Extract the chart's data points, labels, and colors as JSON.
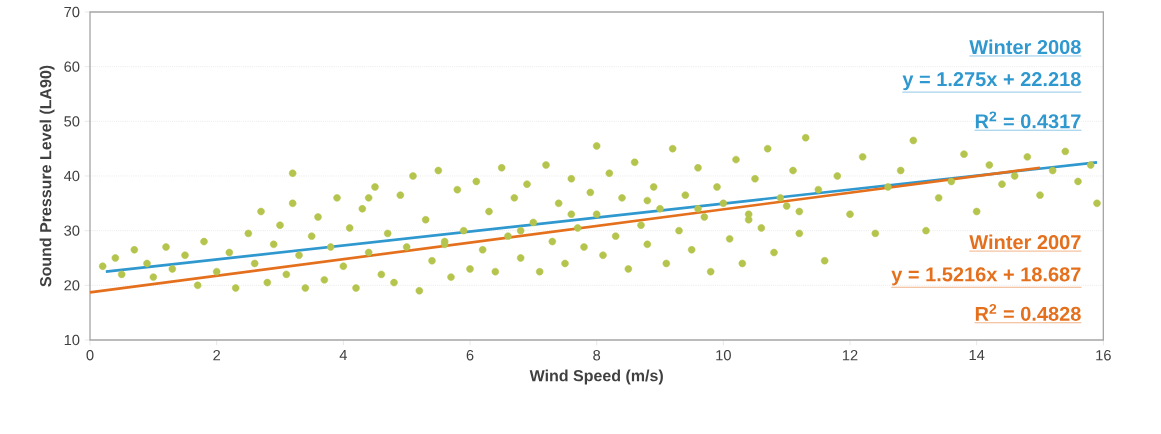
{
  "chart_data": {
    "type": "scatter",
    "xlabel": "Wind Speed (m/s)",
    "ylabel": "Sound Pressure Level (LA90)",
    "xlim": [
      0,
      16
    ],
    "ylim": [
      10,
      70
    ],
    "xticks": [
      0,
      2,
      4,
      6,
      8,
      10,
      12,
      14,
      16
    ],
    "yticks": [
      10,
      20,
      30,
      40,
      50,
      60,
      70
    ],
    "grid": "y",
    "series": [
      {
        "color": "#b5c44c",
        "marker": "circle",
        "x": [
          0.2,
          0.4,
          0.5,
          0.7,
          0.9,
          1.0,
          1.2,
          1.3,
          1.5,
          1.7,
          1.8,
          2.0,
          2.2,
          2.3,
          2.5,
          2.6,
          2.7,
          2.8,
          2.9,
          3.0,
          3.1,
          3.2,
          3.3,
          3.4,
          3.5,
          3.6,
          3.7,
          3.8,
          3.9,
          4.0,
          4.1,
          4.2,
          4.3,
          4.4,
          4.5,
          4.6,
          4.7,
          4.8,
          4.9,
          5.0,
          5.1,
          5.2,
          5.3,
          5.4,
          5.5,
          5.6,
          5.7,
          5.8,
          5.9,
          6.0,
          6.1,
          6.2,
          6.3,
          6.4,
          6.5,
          6.6,
          6.7,
          6.8,
          6.9,
          7.0,
          7.1,
          7.2,
          7.3,
          7.4,
          7.5,
          7.6,
          7.7,
          7.8,
          7.9,
          8.0,
          8.0,
          8.1,
          8.2,
          8.3,
          8.4,
          8.5,
          8.6,
          8.7,
          8.8,
          8.9,
          9.0,
          9.1,
          9.2,
          9.3,
          9.4,
          9.5,
          9.6,
          9.7,
          9.8,
          9.9,
          10.0,
          10.1,
          10.2,
          10.3,
          10.4,
          10.5,
          10.6,
          10.7,
          10.8,
          10.9,
          11.0,
          11.1,
          11.2,
          11.3,
          11.5,
          11.6,
          11.8,
          12.0,
          12.2,
          12.4,
          12.6,
          12.8,
          13.0,
          13.2,
          13.4,
          13.6,
          13.8,
          14.0,
          14.2,
          14.4,
          14.6,
          14.8,
          15.0,
          15.2,
          15.4,
          15.6,
          15.8,
          15.9,
          3.2,
          4.4,
          5.6,
          6.8,
          7.6,
          8.8,
          9.6,
          10.4,
          11.2
        ],
        "values": [
          23.5,
          25.0,
          22.0,
          26.5,
          24.0,
          21.5,
          27.0,
          23.0,
          25.5,
          20.0,
          28.0,
          22.5,
          26.0,
          19.5,
          29.5,
          24.0,
          33.5,
          20.5,
          27.5,
          31.0,
          22.0,
          35.0,
          25.5,
          19.5,
          29.0,
          32.5,
          21.0,
          27.0,
          36.0,
          23.5,
          30.5,
          19.5,
          34.0,
          26.0,
          38.0,
          22.0,
          29.5,
          20.5,
          36.5,
          27.0,
          40.0,
          19.0,
          32.0,
          24.5,
          41.0,
          28.0,
          21.5,
          37.5,
          30.0,
          23.0,
          39.0,
          26.5,
          33.5,
          22.5,
          41.5,
          29.0,
          36.0,
          25.0,
          38.5,
          31.5,
          22.5,
          42.0,
          28.0,
          35.0,
          24.0,
          39.5,
          30.5,
          27.0,
          37.0,
          45.5,
          33.0,
          25.5,
          40.5,
          29.0,
          36.0,
          23.0,
          42.5,
          31.0,
          27.5,
          38.0,
          34.0,
          24.0,
          45.0,
          30.0,
          36.5,
          26.5,
          41.5,
          32.5,
          22.5,
          38.0,
          35.0,
          28.5,
          43.0,
          24.0,
          33.0,
          39.5,
          30.5,
          45.0,
          26.0,
          36.0,
          34.5,
          41.0,
          29.5,
          47.0,
          37.5,
          24.5,
          40.0,
          33.0,
          43.5,
          29.5,
          38.0,
          41.0,
          46.5,
          30.0,
          36.0,
          39.0,
          44.0,
          33.5,
          42.0,
          38.5,
          40.0,
          43.5,
          36.5,
          41.0,
          44.5,
          39.0,
          42.0,
          35.0,
          40.5,
          36.0,
          27.5,
          30.0,
          33.0,
          35.5,
          34.0,
          32.0,
          33.5
        ]
      },
      {
        "type": "line",
        "name": "Winter 2008",
        "color": "#2e98cf",
        "x": [
          0.25,
          15.9
        ],
        "values": [
          22.5,
          42.5
        ]
      },
      {
        "type": "line",
        "name": "Winter 2007",
        "color": "#e4701e",
        "x": [
          0,
          15
        ],
        "values": [
          18.7,
          41.5
        ]
      }
    ],
    "annotations": [
      "y = 1.275x + 22.218",
      "R$^{2}$ = 0.4317",
      "y = 1.5216x + 18.687",
      "R$^{2}$ = 0.4828"
    ]
  }
}
